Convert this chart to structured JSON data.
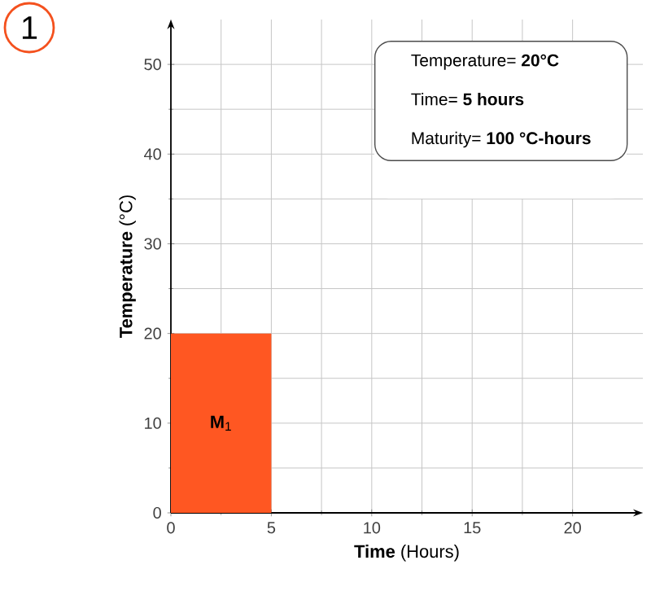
{
  "chart_data": {
    "type": "histogram",
    "bins": [
      0,
      5
    ],
    "values": [
      20
    ],
    "color": "#ff5722",
    "xlabel": "**Time** (Hours)",
    "ylabel": "**Temperature** (°C)",
    "xlim": [
      0,
      23.5
    ],
    "ylim": [
      0,
      55
    ],
    "xticks": [
      0,
      5,
      10,
      15,
      20
    ],
    "yticks": [
      0,
      10,
      20,
      30,
      40,
      50
    ],
    "grid": true,
    "annotations": [
      "1",
      "Temperature= **20°C**",
      "Time= **5 hours**",
      "Maturity= **100 °C-hours**",
      "**M**$_{1}$"
    ]
  }
}
